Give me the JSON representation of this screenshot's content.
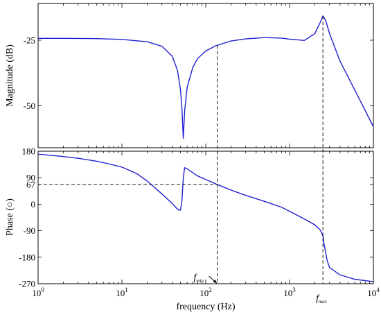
{
  "chart_data": {
    "type": "line",
    "x_scale": "log",
    "xlim": [
      1,
      10000
    ],
    "xlabel": "frequency (Hz)",
    "x_ticks": [
      {
        "value": 1,
        "base": "10",
        "exp": "0"
      },
      {
        "value": 10,
        "base": "10",
        "exp": "1"
      },
      {
        "value": 100,
        "base": "10",
        "exp": "2"
      },
      {
        "value": 1000,
        "base": "10",
        "exp": "3"
      },
      {
        "value": 10000,
        "base": "10",
        "exp": "4"
      }
    ],
    "panels": [
      {
        "id": "magnitude",
        "ylabel": "Magnitude (dB)",
        "ylim": [
          -66,
          -11
        ],
        "y_ticks": [
          -25,
          -50
        ],
        "y_tick_labels": [
          "-25",
          "-50"
        ],
        "series": [
          {
            "x": [
              1,
              2,
              5,
              10,
              20,
              30,
              40,
              46,
              50,
              52,
              54,
              56,
              60,
              70,
              80,
              100,
              130,
              200,
              300,
              500,
              800,
              1000,
              1500,
              2000,
              2300,
              2500,
              2700,
              3000,
              4000,
              6000,
              10000
            ],
            "y": [
              -24.3,
              -24.3,
              -24.4,
              -24.7,
              -25.6,
              -27.3,
              -31.2,
              -36.5,
              -44.0,
              -51.0,
              -62.5,
              -52.0,
              -43.0,
              -35.4,
              -32.0,
              -29.1,
              -27.2,
              -25.3,
              -24.5,
              -24.0,
              -24.2,
              -24.6,
              -25.1,
              -22.5,
              -18.5,
              -15.8,
              -17.5,
              -22.5,
              -33.0,
              -44.0,
              -58.0
            ]
          }
        ]
      },
      {
        "id": "phase",
        "ylabel": "Phase (○)",
        "ylim": [
          -270,
          180
        ],
        "y_ticks": [
          180,
          90,
          67,
          0,
          -90,
          -180,
          -270
        ],
        "y_tick_labels": [
          "180",
          "90",
          "67",
          "0",
          "-90",
          "-180",
          "-270"
        ],
        "series": [
          {
            "x": [
              1,
              2,
              3,
              5,
              7,
              10,
              15,
              20,
              30,
              40,
              45,
              48,
              50,
              52,
              54,
              56,
              60,
              70,
              80,
              100,
              137,
              200,
              300,
              500,
              800,
              1000,
              1500,
              2000,
              2300,
              2400,
              2500,
              2600,
              2800,
              3000,
              4000,
              6000,
              10000
            ],
            "y": [
              170,
              162,
              156,
              146,
              137,
              126,
              104,
              79,
              35,
              2,
              -14,
              -20,
              -20,
              12,
              90,
              124,
              120,
              107,
              96,
              84,
              67,
              48,
              30,
              10,
              -10,
              -24,
              -50,
              -70,
              -86,
              -96,
              -108,
              -140,
              -190,
              -215,
              -240,
              -255,
              -263
            ]
          }
        ]
      }
    ],
    "annotations": [
      {
        "name": "f_min",
        "main": "f",
        "sub": "min",
        "x": 137
      },
      {
        "name": "f_max",
        "main": "f",
        "sub": "max",
        "x": 2500
      }
    ],
    "guide_lines": [
      {
        "x": 137,
        "y_phase": 67
      },
      {
        "x": 2500
      }
    ],
    "colors": {
      "curve": "#1f1fd0",
      "axes": "#000000"
    }
  }
}
